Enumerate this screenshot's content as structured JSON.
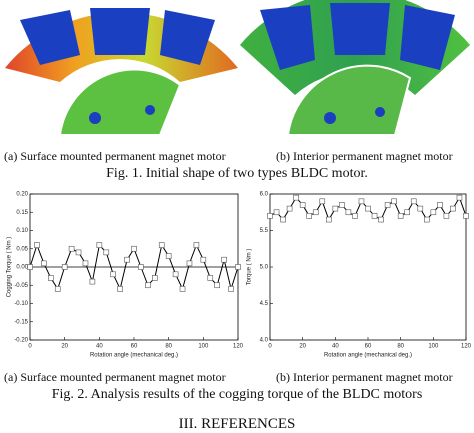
{
  "fig1": {
    "caption_a": "(a) Surface mounted permanent magnet motor",
    "caption_b": "(b) Interior permanent magnet motor",
    "caption": "Fig. 1. Initial shape of  two types BLDC motor."
  },
  "fig2": {
    "caption_a": "(a) Surface mounted permanent magnet motor",
    "caption_b": "(b) Interior permanent magnet motor",
    "caption": "Fig. 2. Analysis results of the cogging torque of the BLDC motors"
  },
  "section_heading": "III. REFERENCES",
  "chart_data": [
    {
      "type": "line",
      "x_label": "Rotation angle (mechanical deg.)",
      "y_label": "Cogging Torque ( Nm )",
      "color": "#000000",
      "x": [
        0,
        4,
        8,
        12,
        16,
        20,
        24,
        28,
        32,
        36,
        40,
        44,
        48,
        52,
        56,
        60,
        64,
        68,
        72,
        76,
        80,
        84,
        88,
        92,
        96,
        100,
        104,
        108,
        112,
        116,
        120
      ],
      "series": [
        {
          "name": "Cogging torque",
          "color": "#000000",
          "values": [
            0.0,
            0.06,
            0.01,
            -0.03,
            -0.06,
            0.0,
            0.05,
            0.04,
            0.01,
            -0.04,
            0.06,
            0.04,
            -0.02,
            -0.06,
            0.02,
            0.05,
            0.0,
            -0.05,
            -0.03,
            0.06,
            0.03,
            -0.02,
            -0.06,
            0.01,
            0.06,
            0.02,
            -0.03,
            -0.05,
            0.02,
            -0.06,
            0.0
          ]
        }
      ],
      "xlim": [
        0,
        120
      ],
      "xticks": [
        0,
        20,
        40,
        60,
        80,
        100,
        120
      ],
      "ylim": [
        -0.2,
        0.2
      ],
      "yticks": [
        {
          "value": -0.2,
          "label": "-0.20"
        },
        {
          "value": -0.15,
          "label": "-0.15"
        },
        {
          "value": -0.1,
          "label": "-0.10"
        },
        {
          "value": -0.05,
          "label": "-0.05"
        },
        {
          "value": 0,
          "label": "0.00"
        },
        {
          "value": 0.05,
          "label": "0.05"
        },
        {
          "value": 0.1,
          "label": "0.10"
        },
        {
          "value": 0.15,
          "label": "0.15"
        },
        {
          "value": 0.2,
          "label": "0.20"
        }
      ]
    },
    {
      "type": "line",
      "x_label": "Rotation angle (mechanical deg.)",
      "y_label": "Torque ( Nm )",
      "color": "#000000",
      "x": [
        0,
        4,
        8,
        12,
        16,
        20,
        24,
        28,
        32,
        36,
        40,
        44,
        48,
        52,
        56,
        60,
        64,
        68,
        72,
        76,
        80,
        84,
        88,
        92,
        96,
        100,
        104,
        108,
        112,
        116,
        120
      ],
      "series": [
        {
          "name": "Torque",
          "color": "#000000",
          "values": [
            5.7,
            5.75,
            5.65,
            5.8,
            5.95,
            5.85,
            5.7,
            5.75,
            5.9,
            5.65,
            5.8,
            5.85,
            5.75,
            5.7,
            5.9,
            5.8,
            5.7,
            5.65,
            5.85,
            5.9,
            5.7,
            5.75,
            5.9,
            5.8,
            5.65,
            5.75,
            5.85,
            5.7,
            5.8,
            5.95,
            5.7
          ]
        }
      ],
      "xlim": [
        0,
        120
      ],
      "xticks": [
        0,
        20,
        40,
        60,
        80,
        100,
        120
      ],
      "ylim": [
        4.0,
        6.0
      ],
      "yticks": [
        {
          "value": 4.0,
          "label": "4.0"
        },
        {
          "value": 4.5,
          "label": "4.5"
        },
        {
          "value": 5.0,
          "label": "5.0"
        },
        {
          "value": 5.5,
          "label": "5.5"
        },
        {
          "value": 6.0,
          "label": "6.0"
        }
      ]
    }
  ]
}
